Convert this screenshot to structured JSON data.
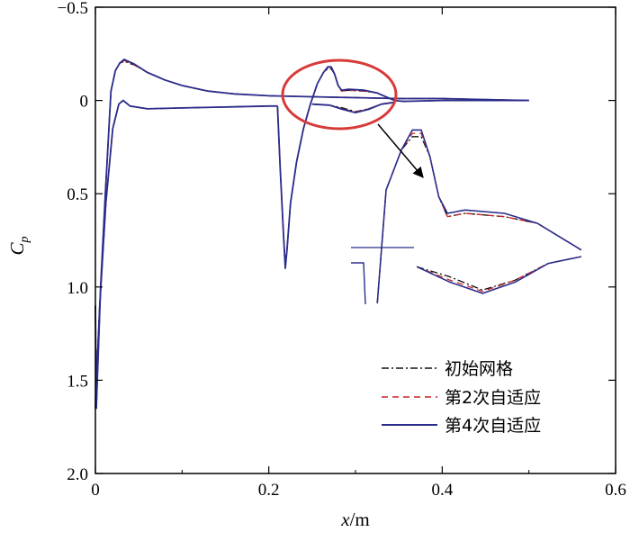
{
  "chart_data": {
    "type": "line",
    "xlabel": {
      "var": "x",
      "unit": "/m"
    },
    "ylabel": {
      "var": "C",
      "sub": "p"
    },
    "xlim": [
      0,
      0.6
    ],
    "ylim": [
      -0.5,
      2.0
    ],
    "y_inverted": true,
    "xticks": [
      "0",
      "0.2",
      "0.4",
      "0.6"
    ],
    "yticks": [
      "−0.5",
      "0",
      "0.5",
      "1.0",
      "1.5",
      "2.0"
    ],
    "legend_position": "bottom-right",
    "grid": false,
    "series": [
      {
        "name": "初始网格",
        "color": "#111111",
        "dash": "8,3,2,3",
        "upper": [
          [
            0,
            1.1
          ],
          [
            0.001,
            1.65
          ],
          [
            0.006,
            1.0
          ],
          [
            0.012,
            0.45
          ],
          [
            0.018,
            -0.05
          ],
          [
            0.023,
            -0.16
          ],
          [
            0.028,
            -0.2
          ],
          [
            0.033,
            -0.21
          ],
          [
            0.045,
            -0.19
          ],
          [
            0.06,
            -0.15
          ],
          [
            0.08,
            -0.11
          ],
          [
            0.1,
            -0.08
          ],
          [
            0.13,
            -0.05
          ],
          [
            0.16,
            -0.035
          ],
          [
            0.2,
            -0.025
          ],
          [
            0.25,
            -0.02
          ],
          [
            0.3,
            -0.015
          ],
          [
            0.35,
            -0.01
          ],
          [
            0.4,
            -0.01
          ],
          [
            0.45,
            -0.005
          ],
          [
            0.5,
            0.0
          ]
        ],
        "lower": [
          [
            0,
            1.6
          ],
          [
            0.005,
            1.1
          ],
          [
            0.012,
            0.55
          ],
          [
            0.02,
            0.15
          ],
          [
            0.027,
            0.02
          ],
          [
            0.032,
            0.0
          ],
          [
            0.04,
            0.03
          ],
          [
            0.06,
            0.045
          ],
          [
            0.1,
            0.04
          ],
          [
            0.15,
            0.035
          ],
          [
            0.2,
            0.03
          ],
          [
            0.21,
            0.03
          ]
        ],
        "shock": [
          [
            0.21,
            0.03
          ],
          [
            0.213,
            0.35
          ],
          [
            0.217,
            0.72
          ],
          [
            0.219,
            0.87
          ],
          [
            0.221,
            0.8
          ],
          [
            0.225,
            0.55
          ],
          [
            0.232,
            0.33
          ],
          [
            0.24,
            0.15
          ],
          [
            0.248,
            0.02
          ],
          [
            0.256,
            -0.09
          ],
          [
            0.263,
            -0.15
          ],
          [
            0.268,
            -0.17
          ],
          [
            0.272,
            -0.17
          ],
          [
            0.276,
            -0.14
          ],
          [
            0.28,
            -0.08
          ],
          [
            0.284,
            -0.05
          ],
          [
            0.292,
            -0.055
          ],
          [
            0.31,
            -0.05
          ],
          [
            0.325,
            -0.04
          ],
          [
            0.335,
            -0.02
          ],
          [
            0.345,
            0.0
          ],
          [
            0.355,
            0.005
          ],
          [
            0.4,
            0.0
          ],
          [
            0.45,
            0.0
          ],
          [
            0.5,
            0.0
          ]
        ],
        "wake_lower": [
          [
            0.25,
            0.02
          ],
          [
            0.27,
            0.025
          ],
          [
            0.285,
            0.04
          ],
          [
            0.3,
            0.06
          ],
          [
            0.315,
            0.045
          ],
          [
            0.33,
            0.02
          ],
          [
            0.345,
            0.01
          ]
        ]
      },
      {
        "name": "第2次自适应",
        "color": "#cc2222",
        "dash": "7,5",
        "upper": [
          [
            0,
            1.1
          ],
          [
            0.001,
            1.65
          ],
          [
            0.006,
            1.0
          ],
          [
            0.012,
            0.45
          ],
          [
            0.018,
            -0.05
          ],
          [
            0.023,
            -0.16
          ],
          [
            0.028,
            -0.2
          ],
          [
            0.033,
            -0.215
          ],
          [
            0.045,
            -0.19
          ],
          [
            0.06,
            -0.15
          ],
          [
            0.08,
            -0.11
          ],
          [
            0.1,
            -0.08
          ],
          [
            0.13,
            -0.05
          ],
          [
            0.16,
            -0.035
          ],
          [
            0.2,
            -0.025
          ],
          [
            0.25,
            -0.02
          ],
          [
            0.3,
            -0.015
          ],
          [
            0.35,
            -0.01
          ],
          [
            0.4,
            -0.01
          ],
          [
            0.45,
            -0.005
          ],
          [
            0.5,
            0.0
          ]
        ],
        "lower": [
          [
            0,
            1.62
          ],
          [
            0.005,
            1.1
          ],
          [
            0.012,
            0.55
          ],
          [
            0.02,
            0.15
          ],
          [
            0.027,
            0.02
          ],
          [
            0.032,
            0.0
          ],
          [
            0.04,
            0.03
          ],
          [
            0.06,
            0.045
          ],
          [
            0.1,
            0.04
          ],
          [
            0.15,
            0.035
          ],
          [
            0.2,
            0.03
          ],
          [
            0.21,
            0.03
          ]
        ],
        "shock": [
          [
            0.21,
            0.03
          ],
          [
            0.213,
            0.35
          ],
          [
            0.217,
            0.72
          ],
          [
            0.219,
            0.88
          ],
          [
            0.221,
            0.8
          ],
          [
            0.225,
            0.55
          ],
          [
            0.232,
            0.33
          ],
          [
            0.24,
            0.15
          ],
          [
            0.248,
            0.02
          ],
          [
            0.256,
            -0.09
          ],
          [
            0.263,
            -0.15
          ],
          [
            0.268,
            -0.175
          ],
          [
            0.272,
            -0.175
          ],
          [
            0.276,
            -0.14
          ],
          [
            0.28,
            -0.08
          ],
          [
            0.284,
            -0.05
          ],
          [
            0.292,
            -0.055
          ],
          [
            0.31,
            -0.05
          ],
          [
            0.325,
            -0.04
          ],
          [
            0.335,
            -0.02
          ],
          [
            0.345,
            0.0
          ],
          [
            0.355,
            0.005
          ],
          [
            0.4,
            0.0
          ],
          [
            0.45,
            0.0
          ],
          [
            0.5,
            0.0
          ]
        ],
        "wake_lower": [
          [
            0.25,
            0.02
          ],
          [
            0.27,
            0.025
          ],
          [
            0.285,
            0.045
          ],
          [
            0.3,
            0.062
          ],
          [
            0.315,
            0.045
          ],
          [
            0.33,
            0.02
          ],
          [
            0.345,
            0.01
          ]
        ]
      },
      {
        "name": "第4次自适应",
        "color": "#2b2d8c",
        "dash": "",
        "upper": [
          [
            0,
            1.1
          ],
          [
            0.001,
            1.65
          ],
          [
            0.006,
            1.0
          ],
          [
            0.012,
            0.45
          ],
          [
            0.018,
            -0.05
          ],
          [
            0.023,
            -0.16
          ],
          [
            0.028,
            -0.2
          ],
          [
            0.033,
            -0.22
          ],
          [
            0.045,
            -0.195
          ],
          [
            0.06,
            -0.15
          ],
          [
            0.08,
            -0.11
          ],
          [
            0.1,
            -0.08
          ],
          [
            0.13,
            -0.05
          ],
          [
            0.16,
            -0.035
          ],
          [
            0.2,
            -0.025
          ],
          [
            0.25,
            -0.02
          ],
          [
            0.3,
            -0.015
          ],
          [
            0.35,
            -0.01
          ],
          [
            0.4,
            -0.01
          ],
          [
            0.45,
            -0.005
          ],
          [
            0.5,
            0.0
          ]
        ],
        "lower": [
          [
            0,
            1.65
          ],
          [
            0.005,
            1.1
          ],
          [
            0.012,
            0.55
          ],
          [
            0.02,
            0.15
          ],
          [
            0.027,
            0.02
          ],
          [
            0.032,
            0.0
          ],
          [
            0.04,
            0.03
          ],
          [
            0.06,
            0.045
          ],
          [
            0.1,
            0.04
          ],
          [
            0.15,
            0.035
          ],
          [
            0.2,
            0.03
          ],
          [
            0.21,
            0.03
          ]
        ],
        "shock": [
          [
            0.21,
            0.03
          ],
          [
            0.213,
            0.35
          ],
          [
            0.217,
            0.72
          ],
          [
            0.219,
            0.9
          ],
          [
            0.221,
            0.8
          ],
          [
            0.225,
            0.55
          ],
          [
            0.232,
            0.33
          ],
          [
            0.24,
            0.15
          ],
          [
            0.248,
            0.02
          ],
          [
            0.256,
            -0.09
          ],
          [
            0.263,
            -0.15
          ],
          [
            0.268,
            -0.18
          ],
          [
            0.272,
            -0.18
          ],
          [
            0.276,
            -0.14
          ],
          [
            0.28,
            -0.08
          ],
          [
            0.284,
            -0.055
          ],
          [
            0.292,
            -0.06
          ],
          [
            0.31,
            -0.055
          ],
          [
            0.325,
            -0.04
          ],
          [
            0.335,
            -0.02
          ],
          [
            0.345,
            0.0
          ],
          [
            0.355,
            0.005
          ],
          [
            0.4,
            0.0
          ],
          [
            0.45,
            0.0
          ],
          [
            0.5,
            0.0
          ]
        ],
        "wake_lower": [
          [
            0.25,
            0.02
          ],
          [
            0.27,
            0.025
          ],
          [
            0.285,
            0.048
          ],
          [
            0.3,
            0.065
          ],
          [
            0.315,
            0.048
          ],
          [
            0.33,
            0.02
          ],
          [
            0.345,
            0.01
          ]
        ]
      }
    ],
    "highlight": {
      "ellipse_color": "#d83a3a",
      "arrow_color": "#000000"
    }
  }
}
